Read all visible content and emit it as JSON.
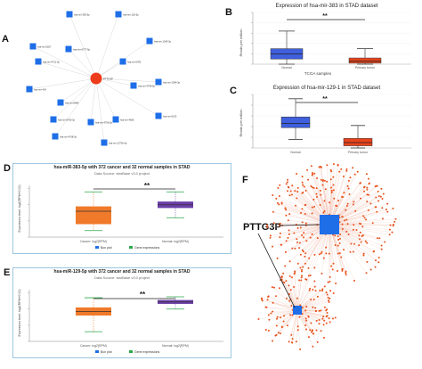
{
  "panels": {
    "a": {
      "label": "A"
    },
    "b": {
      "label": "B",
      "title": "Expression of hsa-mir-383 in STAD dataset",
      "sig": "**",
      "ylabel": "Reads per million",
      "xlabel": "TCGA samples",
      "cat1": "Normal",
      "cat2": "Primary tumor"
    },
    "c": {
      "label": "C",
      "title": "Expression of hsa-mir-129-1 in STAD dataset",
      "sig": "**",
      "ylabel": "Reads per million",
      "cat1": "Normal",
      "cat2": "Primary tumor"
    },
    "d": {
      "label": "D",
      "title": "hsa-miR-383-5p with 372 cancer and 32 normal samples in STAD",
      "subtitle": "Data Source: starBase v3.0 project",
      "sig": "**",
      "ylabel": "Expression level: log2(RPM+0.01)",
      "cat1": "Cancer: log2(RPM)",
      "cat2": "Normal: log2(RPM)",
      "legend1": "Box plot",
      "legend2": "Gene expressions"
    },
    "e": {
      "label": "E",
      "title": "hsa-miR-129-5p with 372 cancer and 32 normal samples in STAD",
      "subtitle": "Data Source: starBase v3.0 project",
      "sig": "**",
      "ylabel": "Expression level: log2(RPM+0.01)",
      "cat1": "Cancer: log2(RPM)",
      "cat2": "Normal: log2(RPM)",
      "legend1": "Box plot",
      "legend2": "Gene expressions"
    },
    "f": {
      "label": "F",
      "gene": "PTTG3P"
    }
  },
  "network_a": {
    "hub": "PTTG3P",
    "nodes": [
      "hsa-mir-383-5p",
      "hsa-mir-129-5p",
      "hsa-mir-1343-3p",
      "hsa-mir-5187",
      "hsa-mir-4711-3p",
      "hsa-mir-6777-5p",
      "hsa-mir-6782",
      "hsa-mir-4758-5p",
      "hsa-mir-424",
      "hsa-mir-8485",
      "hsa-mir-6765-3p",
      "hsa-mir-4756-5p",
      "hsa-mir-4508",
      "hsa-mir-6133",
      "hsa-mir-4768-3p",
      "hsa-mir-1273h-5p",
      "hsa-mir-1304-3p"
    ]
  },
  "colors": {
    "normal": "#3f5fdc",
    "tumor": "#e8431c",
    "cancer_box": "#f07a2a",
    "normal_box": "#6b3fa8",
    "node": "#1e6ee8",
    "hub": "#ee3b1a",
    "scatter": "#e8521c"
  },
  "chart_data": [
    {
      "type": "box",
      "panel": "B",
      "title": "Expression of hsa-mir-383 in STAD dataset",
      "ylabel": "Reads per million",
      "xlabel": "TCGA samples",
      "ylim": [
        0,
        5
      ],
      "categories": [
        "Normal",
        "Primary tumor"
      ],
      "series": [
        {
          "name": "Normal",
          "min": 0,
          "q1": 0.5,
          "median": 1.0,
          "q3": 1.5,
          "max": 3.2
        },
        {
          "name": "Primary tumor",
          "min": 0,
          "q1": 0.1,
          "median": 0.3,
          "q3": 0.6,
          "max": 1.5
        }
      ]
    },
    {
      "type": "box",
      "panel": "C",
      "title": "Expression of hsa-mir-129-1 in STAD dataset",
      "ylabel": "Reads per million",
      "ylim": [
        0,
        5
      ],
      "categories": [
        "Normal",
        "Primary tumor"
      ],
      "series": [
        {
          "name": "Normal",
          "min": 0.8,
          "q1": 1.9,
          "median": 2.3,
          "q3": 2.9,
          "max": 4.6
        },
        {
          "name": "Primary tumor",
          "min": 0,
          "q1": 0.2,
          "median": 0.5,
          "q3": 0.9,
          "max": 2.1
        }
      ]
    },
    {
      "type": "box",
      "panel": "D",
      "title": "hsa-miR-383-5p with 372 cancer and 32 normal samples in STAD",
      "ylabel": "Expression level: log2(RPM+0.01)",
      "ylim": [
        -10,
        6
      ],
      "categories": [
        "Cancer: log2(RPM)",
        "Normal: log2(RPM)"
      ],
      "series": [
        {
          "name": "Cancer",
          "min": -8,
          "q1": -6,
          "median": -2,
          "q3": -0.5,
          "max": 4
        },
        {
          "name": "Normal",
          "min": -4,
          "q1": -1,
          "median": 0,
          "q3": 1,
          "max": 4
        }
      ]
    },
    {
      "type": "box",
      "panel": "E",
      "title": "hsa-miR-129-5p with 372 cancer and 32 normal samples in STAD",
      "ylabel": "Expression level: log2(RPM+0.01)",
      "ylim": [
        -10,
        6
      ],
      "categories": [
        "Cancer: log2(RPM)",
        "Normal: log2(RPM)"
      ],
      "series": [
        {
          "name": "Cancer",
          "min": -7,
          "q1": -2,
          "median": -0.8,
          "q3": 0.5,
          "max": 3.5
        },
        {
          "name": "Normal",
          "min": 0,
          "q1": 1.6,
          "median": 2.2,
          "q3": 2.8,
          "max": 3.8
        }
      ]
    }
  ]
}
